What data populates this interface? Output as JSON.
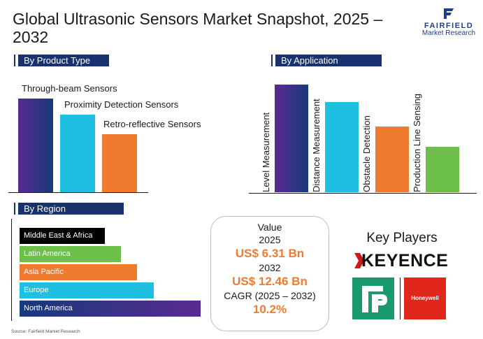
{
  "title": "Global Ultrasonic Sensors Market Snapshot, 2025 – 2032",
  "brand": {
    "name": "FAIRFIELD",
    "sub": "Market Research",
    "color": "#1f3e8a"
  },
  "sections": {
    "product": "By Product Type",
    "application": "By Application",
    "region": "By Region"
  },
  "chart_data": [
    {
      "type": "bar",
      "title": "By Product Type",
      "categories": [
        "Through-beam Sensors",
        "Proximity Detection Sensors",
        "Retro-reflective Sensors"
      ],
      "values": [
        100,
        83,
        62
      ],
      "colors": [
        "#3b2a8a",
        "#1ebfe0",
        "#ef7b30"
      ]
    },
    {
      "type": "bar",
      "title": "By Application",
      "categories": [
        "Level Measurement",
        "Distance Measurement",
        "Obstacle Detection",
        "Production Line Sensing"
      ],
      "values": [
        100,
        84,
        61,
        42
      ],
      "colors": [
        "#163a7a",
        "#1ebfe0",
        "#ef7b30",
        "#6cc04a"
      ]
    },
    {
      "type": "bar",
      "orientation": "horizontal",
      "title": "By Region",
      "categories": [
        "Middle East & Africa",
        "Latin America",
        "Asia Pacific",
        "Europe",
        "North America"
      ],
      "values": [
        47,
        56,
        65,
        74,
        100
      ],
      "colors": [
        "#000000",
        "#6cc04a",
        "#ef7b30",
        "#1ebfe0",
        "#5b2a91"
      ]
    }
  ],
  "value_box": {
    "label": "Value",
    "year1": "2025",
    "value1": "US$ 6.31 Bn",
    "year2": "2032",
    "value2": "US$ 12.46 Bn",
    "cagr_label": "CAGR (2025 – 2032)",
    "cagr_value": "10.2%"
  },
  "key_players": {
    "title": "Key Players",
    "keyence": "KEYENCE",
    "honeywell": "Honeywell"
  },
  "source": "Source: Fairfield Market Research"
}
